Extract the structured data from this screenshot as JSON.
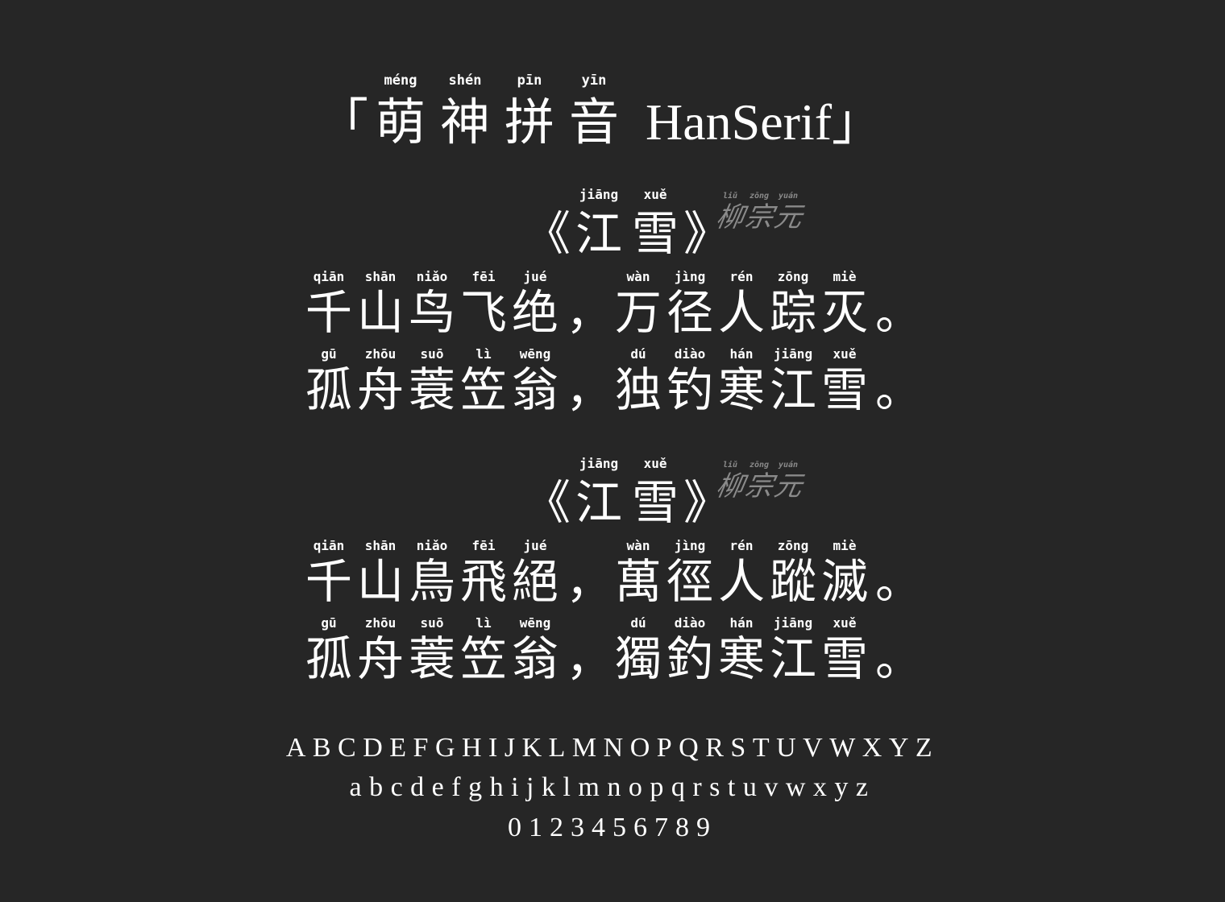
{
  "title": {
    "open_bracket": "「",
    "close_bracket": "」",
    "chars": [
      {
        "hz": "萌",
        "py": "méng"
      },
      {
        "hz": "神",
        "py": "shén"
      },
      {
        "hz": "拼",
        "py": "pīn"
      },
      {
        "hz": "音",
        "py": "yīn"
      }
    ],
    "latin": "HanSerif"
  },
  "poems": [
    {
      "open_bracket": "《",
      "close_bracket": "》",
      "title_chars": [
        {
          "hz": "江",
          "py": "jiāng"
        },
        {
          "hz": "雪",
          "py": "xuě"
        }
      ],
      "author": [
        {
          "hz": "柳",
          "py": "liǔ"
        },
        {
          "hz": "宗",
          "py": "zōng"
        },
        {
          "hz": "元",
          "py": "yuán"
        }
      ],
      "lines": [
        [
          {
            "hz": "千",
            "py": "qiān"
          },
          {
            "hz": "山",
            "py": "shān"
          },
          {
            "hz": "鸟",
            "py": "niǎo"
          },
          {
            "hz": "飞",
            "py": "fēi"
          },
          {
            "hz": "绝",
            "py": "jué"
          },
          {
            "hz": "，",
            "py": ""
          },
          {
            "hz": "万",
            "py": "wàn"
          },
          {
            "hz": "径",
            "py": "jìng"
          },
          {
            "hz": "人",
            "py": "rén"
          },
          {
            "hz": "踪",
            "py": "zōng"
          },
          {
            "hz": "灭",
            "py": "miè"
          },
          {
            "hz": "。",
            "py": ""
          }
        ],
        [
          {
            "hz": "孤",
            "py": "gū"
          },
          {
            "hz": "舟",
            "py": "zhōu"
          },
          {
            "hz": "蓑",
            "py": "suō"
          },
          {
            "hz": "笠",
            "py": "lì"
          },
          {
            "hz": "翁",
            "py": "wēng"
          },
          {
            "hz": "，",
            "py": ""
          },
          {
            "hz": "独",
            "py": "dú"
          },
          {
            "hz": "钓",
            "py": "diào"
          },
          {
            "hz": "寒",
            "py": "hán"
          },
          {
            "hz": "江",
            "py": "jiāng"
          },
          {
            "hz": "雪",
            "py": "xuě"
          },
          {
            "hz": "。",
            "py": ""
          }
        ]
      ]
    },
    {
      "open_bracket": "《",
      "close_bracket": "》",
      "title_chars": [
        {
          "hz": "江",
          "py": "jiāng"
        },
        {
          "hz": "雪",
          "py": "xuě"
        }
      ],
      "author": [
        {
          "hz": "柳",
          "py": "liǔ"
        },
        {
          "hz": "宗",
          "py": "zōng"
        },
        {
          "hz": "元",
          "py": "yuán"
        }
      ],
      "lines": [
        [
          {
            "hz": "千",
            "py": "qiān"
          },
          {
            "hz": "山",
            "py": "shān"
          },
          {
            "hz": "鳥",
            "py": "niǎo"
          },
          {
            "hz": "飛",
            "py": "fēi"
          },
          {
            "hz": "絕",
            "py": "jué"
          },
          {
            "hz": "，",
            "py": ""
          },
          {
            "hz": "萬",
            "py": "wàn"
          },
          {
            "hz": "徑",
            "py": "jìng"
          },
          {
            "hz": "人",
            "py": "rén"
          },
          {
            "hz": "蹤",
            "py": "zōng"
          },
          {
            "hz": "滅",
            "py": "miè"
          },
          {
            "hz": "。",
            "py": ""
          }
        ],
        [
          {
            "hz": "孤",
            "py": "gū"
          },
          {
            "hz": "舟",
            "py": "zhōu"
          },
          {
            "hz": "蓑",
            "py": "suō"
          },
          {
            "hz": "笠",
            "py": "lì"
          },
          {
            "hz": "翁",
            "py": "wēng"
          },
          {
            "hz": "，",
            "py": ""
          },
          {
            "hz": "獨",
            "py": "dú"
          },
          {
            "hz": "釣",
            "py": "diào"
          },
          {
            "hz": "寒",
            "py": "hán"
          },
          {
            "hz": "江",
            "py": "jiāng"
          },
          {
            "hz": "雪",
            "py": "xuě"
          },
          {
            "hz": "。",
            "py": ""
          }
        ]
      ]
    }
  ],
  "alphabet": {
    "upper": "ABCDEFGHIJKLMNOPQRSTUVWXYZ",
    "lower": "abcdefghijklmnopqrstuvwxyz",
    "digits": "0123456789"
  },
  "colors": {
    "background": "#262626",
    "text": "#ffffff",
    "author": "#8a8a8a"
  }
}
